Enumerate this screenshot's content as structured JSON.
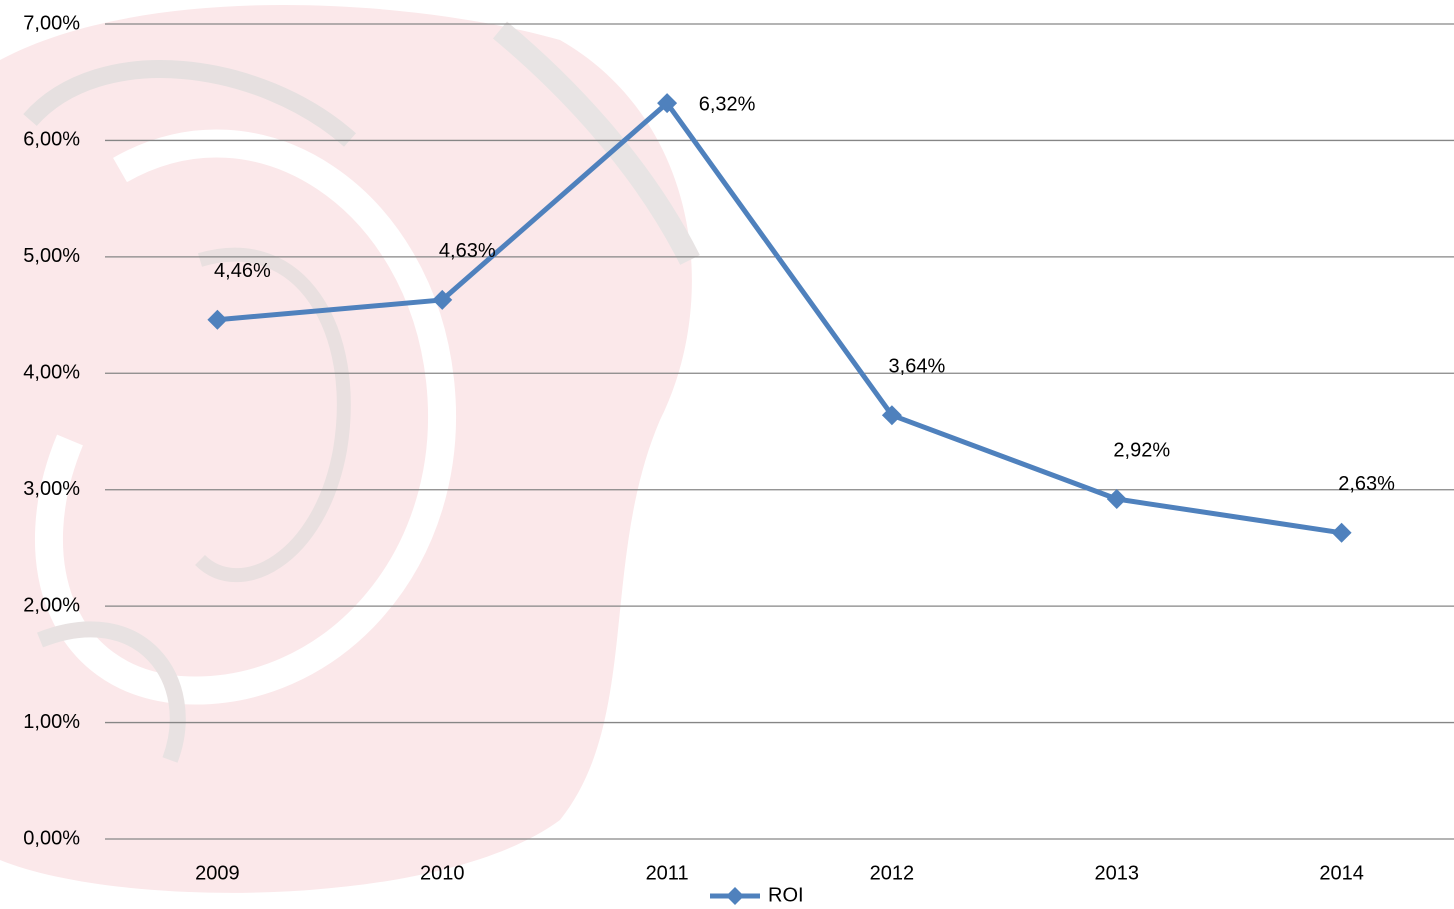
{
  "chart_data": {
    "type": "line",
    "categories": [
      "2009",
      "2010",
      "2011",
      "2012",
      "2013",
      "2014"
    ],
    "series": [
      {
        "name": "ROI",
        "color": "#4f81bd",
        "values": [
          4.46,
          4.63,
          6.32,
          3.64,
          2.92,
          2.63
        ],
        "value_labels": [
          "4,46%",
          "4,63%",
          "6,32%",
          "3,64%",
          "2,92%",
          "2,63%"
        ]
      }
    ],
    "ylim": [
      0,
      7
    ],
    "yticks": [
      {
        "value": 0,
        "label": "0,00%"
      },
      {
        "value": 1,
        "label": "1,00%"
      },
      {
        "value": 2,
        "label": "2,00%"
      },
      {
        "value": 3,
        "label": "3,00%"
      },
      {
        "value": 4,
        "label": "4,00%"
      },
      {
        "value": 5,
        "label": "5,00%"
      },
      {
        "value": 6,
        "label": "6,00%"
      },
      {
        "value": 7,
        "label": "7,00%"
      }
    ],
    "grid": true,
    "legend": "bottom"
  }
}
